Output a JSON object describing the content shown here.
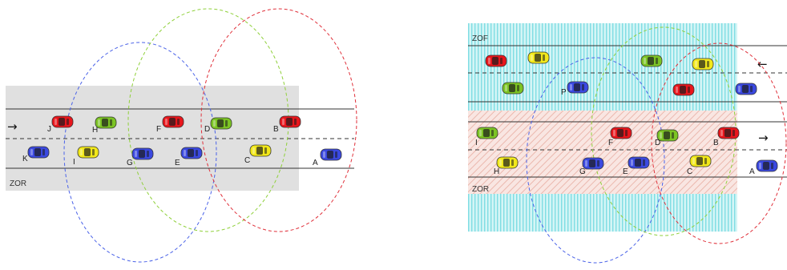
{
  "left_panel": {
    "zone_label": "ZOR",
    "arrow": "→",
    "colors": {
      "zone_fill": "#e0e0e0"
    },
    "vehicles": [
      {
        "label": "J",
        "color": "red"
      },
      {
        "label": "H",
        "color": "green"
      },
      {
        "label": "F",
        "color": "red"
      },
      {
        "label": "D",
        "color": "green"
      },
      {
        "label": "B",
        "color": "red"
      },
      {
        "label": "K",
        "color": "blue"
      },
      {
        "label": "I",
        "color": "yellow"
      },
      {
        "label": "G",
        "color": "blue"
      },
      {
        "label": "E",
        "color": "blue"
      },
      {
        "label": "C",
        "color": "yellow"
      },
      {
        "label": "A",
        "color": "blue"
      }
    ],
    "ranges": [
      "blue",
      "green",
      "red"
    ]
  },
  "right_panel": {
    "zone_labels": {
      "top": "ZOF",
      "bottom": "ZOR"
    },
    "arrows": {
      "top": "←",
      "bottom": "→"
    },
    "colors": {
      "zof_fill": "#bdeef0",
      "zor_fill": "#f7dcd6"
    },
    "vehicles": [
      {
        "label": "",
        "color": "red"
      },
      {
        "label": "",
        "color": "yellow"
      },
      {
        "label": "",
        "color": "green"
      },
      {
        "label": "",
        "color": "yellow"
      },
      {
        "label": "",
        "color": "green"
      },
      {
        "label": "P",
        "color": "blue"
      },
      {
        "label": "",
        "color": "red"
      },
      {
        "label": "",
        "color": "blue"
      },
      {
        "label": "I",
        "color": "green"
      },
      {
        "label": "F",
        "color": "red"
      },
      {
        "label": "D",
        "color": "green"
      },
      {
        "label": "B",
        "color": "red"
      },
      {
        "label": "H",
        "color": "yellow"
      },
      {
        "label": "G",
        "color": "blue"
      },
      {
        "label": "E",
        "color": "blue"
      },
      {
        "label": "C",
        "color": "yellow"
      },
      {
        "label": "A",
        "color": "blue"
      }
    ],
    "ranges": [
      "blue",
      "green",
      "red"
    ]
  },
  "palette": {
    "red": "#e8161c",
    "green": "#7cc424",
    "yellow": "#f2e81a",
    "blue": "#3b49e0",
    "range_blue": "#4a62e8",
    "range_green": "#8fd03a",
    "range_red": "#e0303a"
  }
}
